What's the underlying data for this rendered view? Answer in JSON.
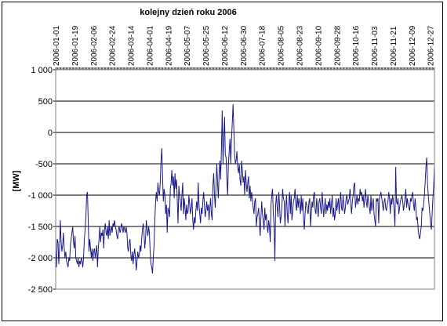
{
  "chart_data": {
    "type": "line",
    "title": "kolejny dzień roku 2006",
    "xlabel": "",
    "ylabel": "[MW]",
    "x_start": "2006-01-01",
    "x_end": "2006-12-31",
    "xlim": [
      "2006-01-01",
      "2006-12-31"
    ],
    "ylim": [
      -2500,
      1000
    ],
    "y_ticks": [
      1000,
      500,
      0,
      -500,
      -1000,
      -1500,
      -2000,
      -2500
    ],
    "y_tick_labels": [
      "1 000",
      "500",
      "0",
      "-500",
      "-1 000",
      "-1 500",
      "-2 000",
      "-2 500"
    ],
    "x_tick_labels": [
      "2006-01-01",
      "2006-01-19",
      "2006-02-06",
      "2006-02-24",
      "2006-03-14",
      "2006-04-01",
      "2006-04-19",
      "2006-05-07",
      "2006-05-25",
      "2006-06-12",
      "2006-06-30",
      "2006-07-18",
      "2006-08-05",
      "2006-08-23",
      "2006-09-10",
      "2006-09-28",
      "2006-10-16",
      "2006-11-03",
      "2006-11-21",
      "2006-12-09",
      "2006-12-27"
    ],
    "x_axis_position": "top",
    "grid": "horizontal",
    "series": [
      {
        "color": "#1a1a8c",
        "values": [
          -1900,
          -2150,
          -1700,
          -1750,
          -2100,
          -1850,
          -1400,
          -1750,
          -1900,
          -1800,
          -1600,
          -1850,
          -2000,
          -1900,
          -2050,
          -2100,
          -2150,
          -2000,
          -2050,
          -1800,
          -1700,
          -1600,
          -1500,
          -1750,
          -1850,
          -1650,
          -2000,
          -2050,
          -2100,
          -2000,
          -2150,
          -2050,
          -2100,
          -2000,
          -2050,
          -2150,
          -2000,
          -1700,
          -1550,
          -1350,
          -1000,
          -950,
          -1400,
          -1900,
          -1700,
          -1850,
          -2000,
          -1850,
          -2050,
          -1900,
          -1850,
          -2000,
          -1900,
          -1800,
          -2150,
          -1850,
          -1700,
          -1500,
          -1750,
          -1600,
          -1650,
          -1550,
          -1850,
          -1550,
          -1450,
          -1600,
          -1650,
          -1500,
          -1700,
          -1400,
          -1650,
          -1550,
          -1500,
          -1600,
          -1450,
          -1500,
          -1400,
          -1500,
          -1550,
          -1650,
          -1700,
          -1550,
          -1500,
          -1600,
          -1550,
          -1450,
          -1500,
          -1600,
          -1500,
          -1550,
          -1600,
          -1500,
          -1600,
          -1850,
          -1900,
          -1750,
          -1700,
          -1950,
          -2050,
          -1900,
          -2100,
          -1950,
          -1850,
          -2000,
          -2200,
          -2050,
          -1900,
          -2000,
          -1950,
          -1800,
          -1900,
          -1700,
          -1550,
          -1450,
          -1600,
          -1850,
          -1700,
          -1400,
          -1550,
          -1650,
          -1500,
          -1600,
          -1900,
          -2100,
          -2150,
          -2250,
          -2000,
          -1800,
          -1400,
          -1100,
          -950,
          -1100,
          -800,
          -950,
          -1000,
          -800,
          -450,
          -250,
          -700,
          -1100,
          -900,
          -1000,
          -1300,
          -1150,
          -1600,
          -1200,
          -1250,
          -1350,
          -900,
          -800,
          -600,
          -850,
          -700,
          -1050,
          -650,
          -900,
          -750,
          -1100,
          -1450,
          -850,
          -1000,
          -1100,
          -1250,
          -1000,
          -800,
          -1300,
          -1050,
          -1200,
          -1400,
          -1150,
          -1300,
          -1250,
          -1000,
          -1150,
          -1300,
          -1200,
          -1050,
          -1400,
          -1550,
          -1350,
          -1450,
          -1250,
          -1100,
          -1250,
          -800,
          -1150,
          -1300,
          -1450,
          -1200,
          -1300,
          -1100,
          -950,
          -1150,
          -1350,
          -1250,
          -1100,
          -1250,
          -1150,
          -1400,
          -1200,
          -1050,
          -1300,
          -1400,
          -850,
          -650,
          -1000,
          -1200,
          -850,
          -500,
          -800,
          -1050,
          -650,
          -450,
          -750,
          -250,
          350,
          -500,
          -100,
          250,
          -350,
          -400,
          -750,
          -1000,
          -500,
          -300,
          -100,
          -500,
          -100,
          150,
          450,
          50,
          -350,
          -500,
          -450,
          -300,
          -550,
          -650,
          -500,
          -750,
          -850,
          -450,
          -600,
          -800,
          -700,
          -1000,
          -600,
          -800,
          -950,
          -800,
          -700,
          -1050,
          -850,
          -1100,
          -950,
          -1050,
          -1200,
          -1300,
          -1100,
          -1050,
          -1500,
          -1350,
          -1300,
          -1200,
          -1450,
          -1650,
          -1350,
          -1100,
          -1300,
          -1400,
          -1550,
          -1200,
          -1400,
          -1300,
          -1500,
          -1600,
          -1400,
          -1500,
          -1750,
          -1150,
          -1000,
          -900,
          -1300,
          -1500,
          -2050,
          -1150,
          -1000,
          -1200,
          -1350,
          -950,
          -1150,
          -1450,
          -1350,
          -1200,
          -900,
          -1050,
          -1100,
          -1500,
          -1200,
          -1000,
          -1300,
          -1450,
          -1100,
          -950,
          -1300,
          -1000,
          -1400,
          -1250,
          -1100,
          -1050,
          -900,
          -1150,
          -1250,
          -1000,
          -1200,
          -1050,
          -1150,
          -1300,
          -1000,
          -1250,
          -1050,
          -1400,
          -1550,
          -1300,
          -1100,
          -1150,
          -1250,
          -1300,
          -1100,
          -1050,
          -1500,
          -1300,
          -1100,
          -1200,
          -1000,
          -950,
          -1250,
          -1300,
          -1050,
          -1200,
          -1350,
          -1100,
          -1050,
          -1200,
          -1300,
          -950,
          -1150,
          -1350,
          -1200,
          -1050,
          -1300,
          -1150,
          -1250,
          -1100,
          -1200,
          -1050,
          -1300,
          -1150,
          -1000,
          -1350,
          -1200,
          -1400,
          -1300,
          -1050,
          -1250,
          -1150,
          -1050,
          -1300,
          -1100,
          -950,
          -1200,
          -1250,
          -1000,
          -1150,
          -1300,
          -1200,
          -1050,
          -1000,
          -1150,
          -1100,
          -1050,
          -900,
          -1150,
          -1300,
          -1100,
          -1000,
          -850,
          -800,
          -1200,
          -1100,
          -1000,
          -1150,
          -1050,
          -1100,
          -900,
          -1000,
          -950,
          -1100,
          -1000,
          -1200,
          -1050,
          -900,
          -1100,
          -1200,
          -1000,
          -1100,
          -1200,
          -1300,
          -1000,
          -1250,
          -1150,
          -1050,
          -1300,
          -1400,
          -1500,
          -1050,
          -1100,
          -1050,
          -1450,
          -1050,
          -1000,
          -950,
          -1050,
          -1150,
          -1250,
          -1100,
          -1050,
          -1200,
          -1250,
          -1150,
          -1100,
          -950,
          -1050,
          -1300,
          -1050,
          -1150,
          -1000,
          -1100,
          -1250,
          -1500,
          -550,
          -1100,
          -1150,
          -1050,
          -1300,
          -1200,
          -1100,
          -1050,
          -1000,
          -1100,
          -1250,
          -1150,
          -1050,
          -900,
          -1200,
          -1050,
          -1150,
          -1200,
          -1250,
          -1050,
          -1100,
          -1000,
          -950,
          -1150,
          -1250,
          -1050,
          -1200,
          -1400,
          -1350,
          -1550,
          -1650,
          -1700,
          -1600,
          -1500,
          -1200,
          -1250,
          -1150,
          -1000,
          -800,
          -550,
          -400,
          -800,
          -1000,
          -1150,
          -1300,
          -1450,
          -1550,
          -1300,
          -1050,
          -850,
          -500
        ]
      }
    ]
  }
}
